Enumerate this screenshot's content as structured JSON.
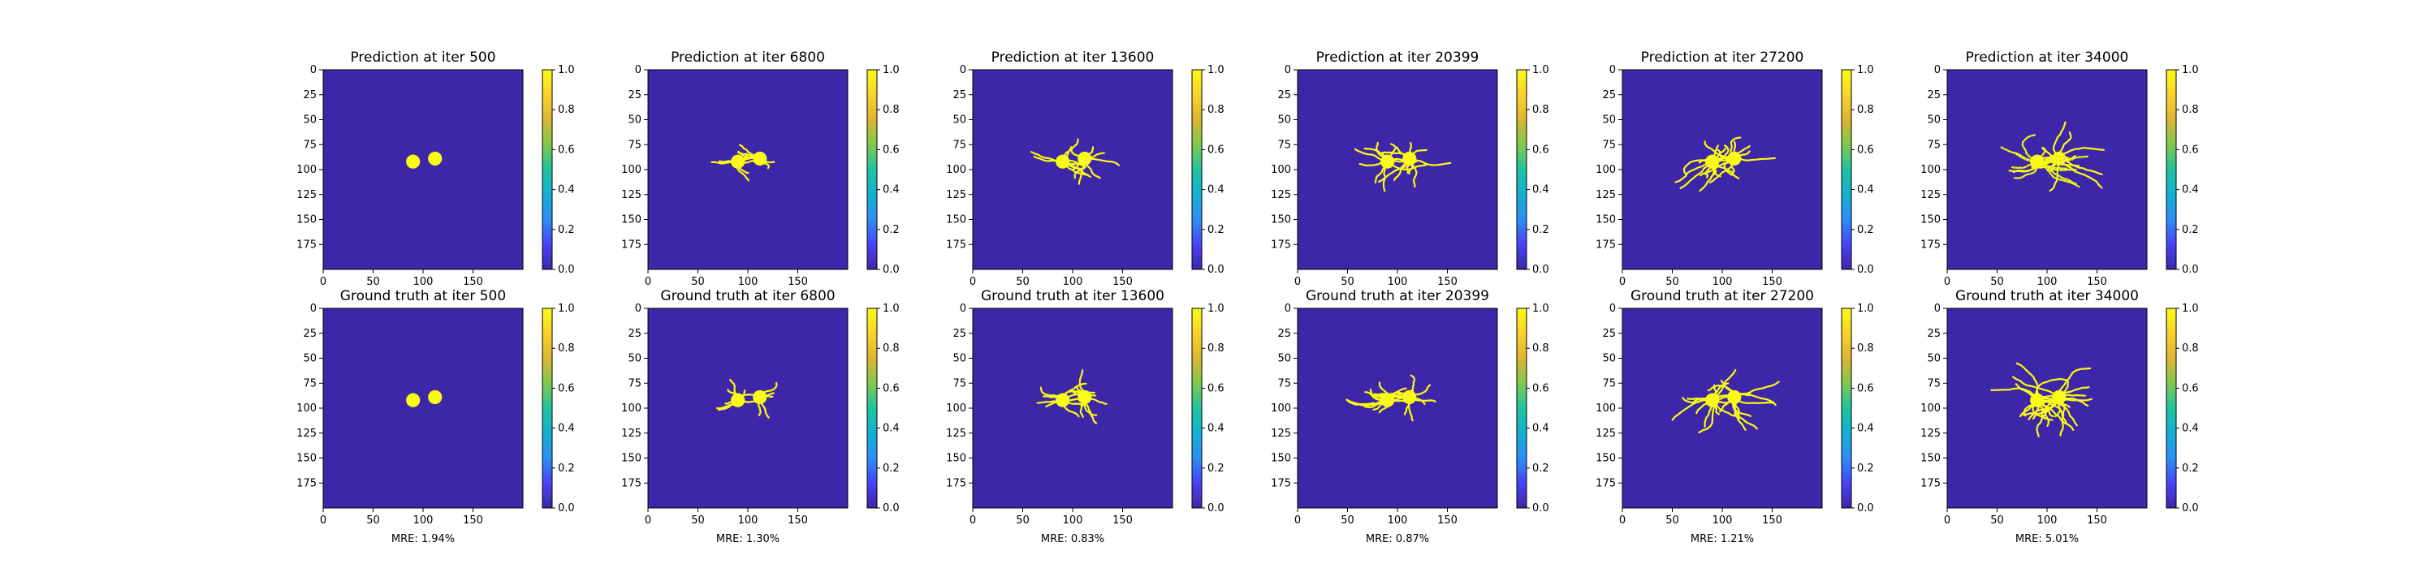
{
  "figure": {
    "background": "#ffffff",
    "colormap": [
      "#3e26a8",
      "#4743f7",
      "#2d8ef5",
      "#13b0d2",
      "#20c39f",
      "#80c94e",
      "#dcb532",
      "#fbd22a",
      "#f9fb15"
    ]
  },
  "chart_data": {
    "type": "heatmap",
    "colorbar": {
      "ticks": [
        "0.0",
        "0.2",
        "0.4",
        "0.6",
        "0.8",
        "1.0"
      ],
      "range": [
        0,
        1
      ]
    },
    "x_ticks": [
      "0",
      "50",
      "100",
      "150"
    ],
    "y_ticks": [
      "0",
      "25",
      "50",
      "75",
      "100",
      "125",
      "150",
      "175"
    ],
    "grid_size": 200,
    "mask_value": 1.0,
    "background_value": 0.0,
    "seeds": [
      {
        "cx": 90,
        "cy": 92,
        "r": 7
      },
      {
        "cx": 112,
        "cy": 89,
        "r": 7
      }
    ],
    "panels": [
      {
        "column": 0,
        "prediction_title": "Prediction at iter 500",
        "ground_truth_title": "Ground truth at iter 500",
        "mre": "MRE: 1.94%",
        "growth": 0.0
      },
      {
        "column": 1,
        "prediction_title": "Prediction at iter 6800",
        "ground_truth_title": "Ground truth at iter 6800",
        "mre": "MRE: 1.30%",
        "growth": 0.3
      },
      {
        "column": 2,
        "prediction_title": "Prediction at iter 13600",
        "ground_truth_title": "Ground truth at iter 13600",
        "mre": "MRE: 0.83%",
        "growth": 0.5
      },
      {
        "column": 3,
        "prediction_title": "Prediction at iter 20399",
        "ground_truth_title": "Ground truth at iter 20399",
        "mre": "MRE: 0.87%",
        "growth": 0.65
      },
      {
        "column": 4,
        "prediction_title": "Prediction at iter 27200",
        "ground_truth_title": "Ground truth at iter 27200",
        "mre": "MRE: 1.21%",
        "growth": 0.82
      },
      {
        "column": 5,
        "prediction_title": "Prediction at iter 34000",
        "ground_truth_title": "Ground truth at iter 34000",
        "mre": "MRE: 5.01%",
        "growth": 1.0
      }
    ]
  }
}
